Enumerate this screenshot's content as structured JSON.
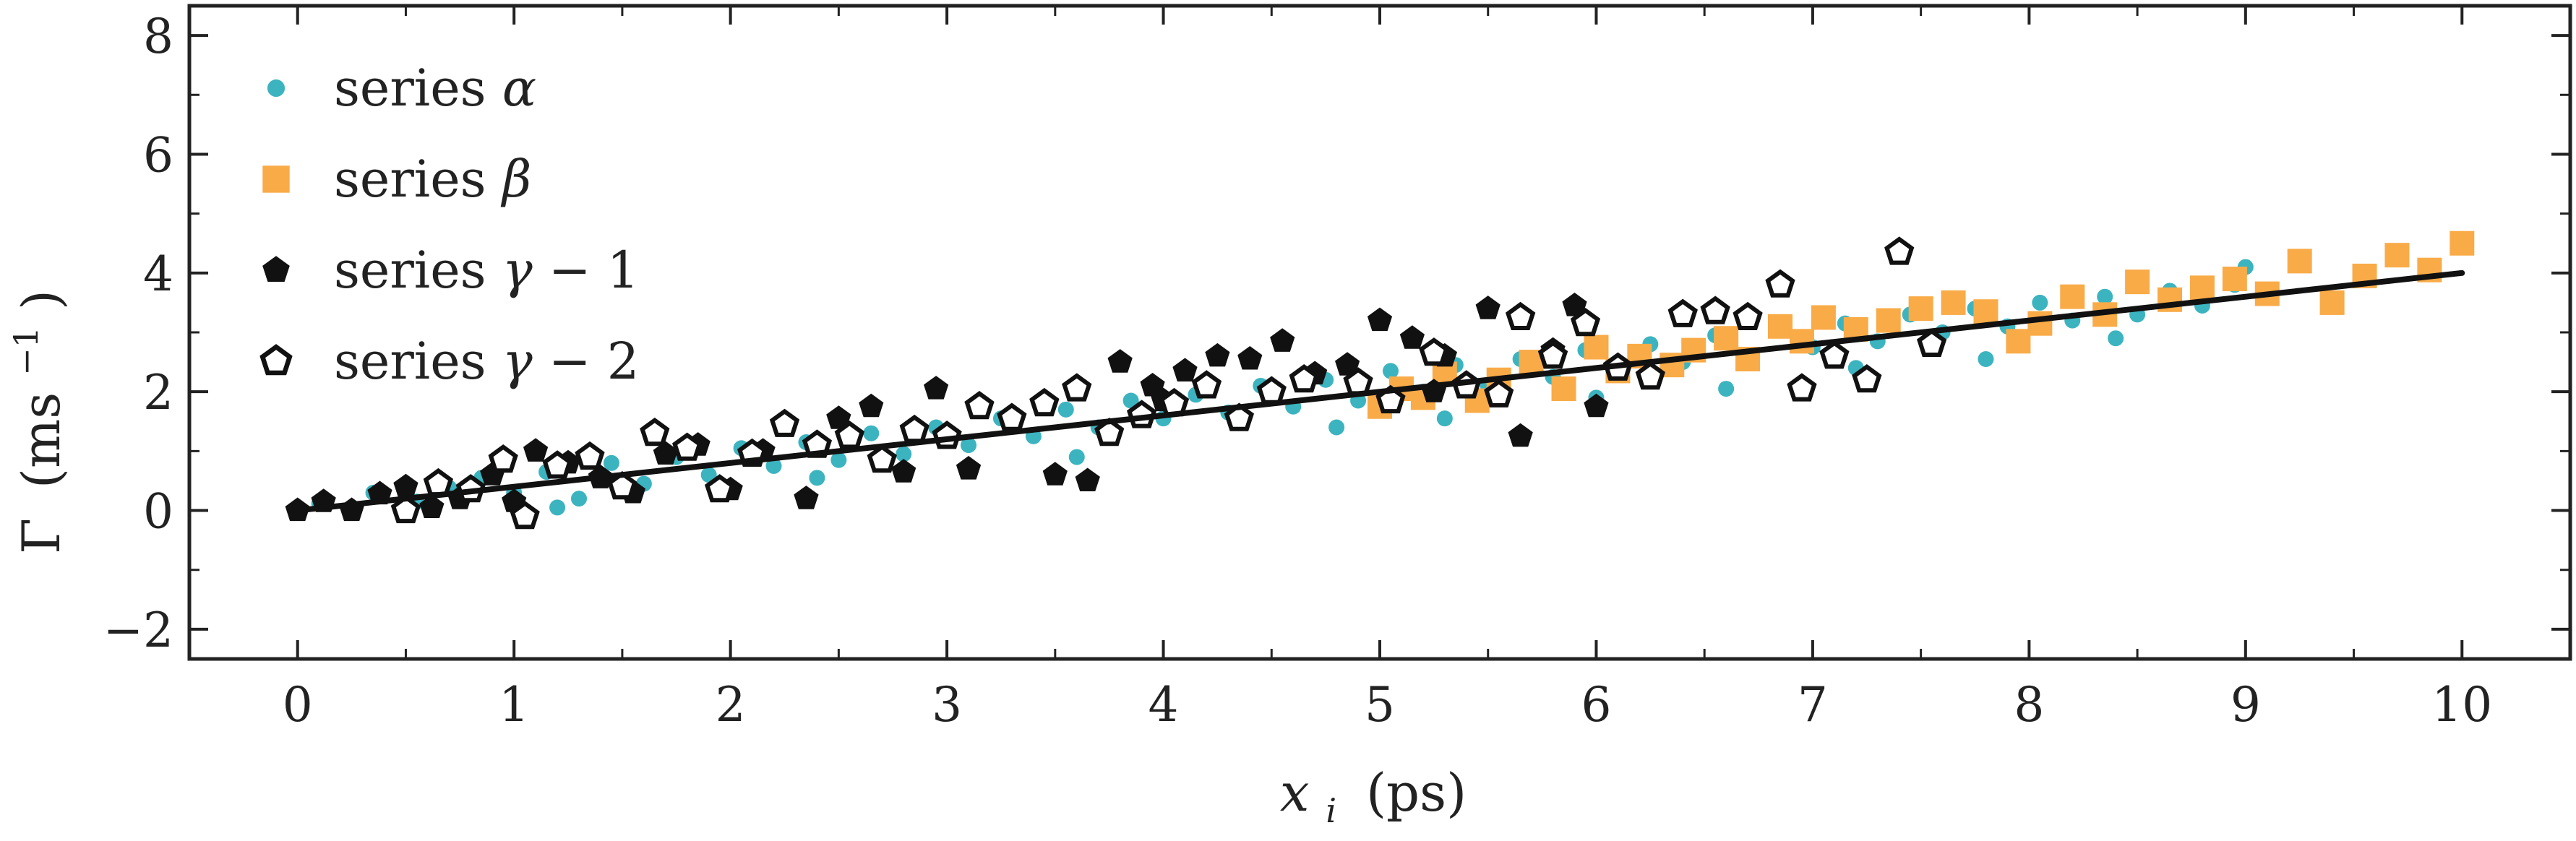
{
  "chart_data": {
    "type": "scatter",
    "xlabel": {
      "symbol": "x",
      "subscript": "i",
      "unit": "(ps)"
    },
    "ylabel": {
      "symbol": "Γ",
      "unit_open": "(ms",
      "unit_sup": "−1",
      "unit_close": ")"
    },
    "xlim": [
      -0.5,
      10.5
    ],
    "ylim": [
      -2.5,
      8.5
    ],
    "xticks": [
      0,
      1,
      2,
      3,
      4,
      5,
      6,
      7,
      8,
      9,
      10
    ],
    "xtick_labels": [
      "0",
      "1",
      "2",
      "3",
      "4",
      "5",
      "6",
      "7",
      "8",
      "9",
      "10"
    ],
    "yticks": [
      -2,
      0,
      2,
      4,
      6,
      8
    ],
    "ytick_labels": [
      "−2",
      "0",
      "2",
      "4",
      "6",
      "8"
    ],
    "grid": false,
    "legend": {
      "placement": "top-left"
    },
    "fit_line": {
      "color": "#111111",
      "points": [
        [
          0,
          0.0
        ],
        [
          10,
          4.0
        ]
      ]
    },
    "series": [
      {
        "name": "series α",
        "label_prefix": "series ",
        "label_symbol": "α",
        "label_suffix": "",
        "marker": "circle",
        "filled": true,
        "color": "#3cb4c0",
        "points": [
          [
            0.1,
            0.12
          ],
          [
            0.35,
            0.3
          ],
          [
            0.55,
            0.15
          ],
          [
            0.7,
            0.38
          ],
          [
            0.85,
            0.55
          ],
          [
            1.0,
            0.3
          ],
          [
            1.15,
            0.65
          ],
          [
            1.3,
            0.2
          ],
          [
            1.45,
            0.8
          ],
          [
            1.6,
            0.45
          ],
          [
            1.75,
            0.9
          ],
          [
            1.9,
            0.6
          ],
          [
            2.05,
            1.05
          ],
          [
            2.2,
            0.75
          ],
          [
            2.35,
            1.15
          ],
          [
            2.5,
            0.85
          ],
          [
            2.65,
            1.3
          ],
          [
            2.8,
            0.95
          ],
          [
            2.95,
            1.4
          ],
          [
            3.1,
            1.1
          ],
          [
            3.25,
            1.55
          ],
          [
            3.4,
            1.25
          ],
          [
            3.55,
            1.7
          ],
          [
            3.7,
            1.4
          ],
          [
            3.85,
            1.85
          ],
          [
            4.0,
            1.55
          ],
          [
            4.15,
            1.95
          ],
          [
            4.3,
            1.65
          ],
          [
            4.45,
            2.1
          ],
          [
            4.6,
            1.75
          ],
          [
            4.75,
            2.2
          ],
          [
            4.9,
            1.85
          ],
          [
            5.05,
            2.35
          ],
          [
            5.2,
            2.0
          ],
          [
            5.35,
            2.45
          ],
          [
            5.5,
            2.1
          ],
          [
            5.65,
            2.55
          ],
          [
            5.8,
            2.25
          ],
          [
            5.95,
            2.7
          ],
          [
            6.1,
            2.35
          ],
          [
            6.25,
            2.8
          ],
          [
            6.4,
            2.5
          ],
          [
            6.55,
            2.95
          ],
          [
            6.7,
            2.6
          ],
          [
            6.85,
            3.05
          ],
          [
            7.0,
            2.75
          ],
          [
            7.15,
            3.15
          ],
          [
            7.3,
            2.85
          ],
          [
            7.45,
            3.3
          ],
          [
            7.6,
            3.0
          ],
          [
            7.75,
            3.4
          ],
          [
            7.9,
            3.1
          ],
          [
            8.05,
            3.5
          ],
          [
            8.2,
            3.2
          ],
          [
            8.35,
            3.6
          ],
          [
            8.5,
            3.3
          ],
          [
            8.65,
            3.7
          ],
          [
            8.8,
            3.45
          ],
          [
            8.95,
            3.8
          ],
          [
            9.0,
            4.1
          ],
          [
            1.2,
            0.05
          ],
          [
            2.4,
            0.55
          ],
          [
            3.6,
            0.9
          ],
          [
            4.8,
            1.4
          ],
          [
            6.0,
            1.9
          ],
          [
            7.2,
            2.4
          ],
          [
            8.4,
            2.9
          ],
          [
            5.3,
            1.55
          ],
          [
            6.6,
            2.05
          ],
          [
            7.8,
            2.55
          ]
        ]
      },
      {
        "name": "series β",
        "label_prefix": "series ",
        "label_symbol": "β",
        "label_suffix": "",
        "marker": "square",
        "filled": true,
        "color": "#f9ab48",
        "points": [
          [
            5.0,
            1.75
          ],
          [
            5.1,
            2.05
          ],
          [
            5.2,
            1.9
          ],
          [
            5.3,
            2.3
          ],
          [
            5.45,
            1.85
          ],
          [
            5.55,
            2.2
          ],
          [
            5.7,
            2.5
          ],
          [
            5.85,
            2.05
          ],
          [
            6.0,
            2.75
          ],
          [
            6.1,
            2.35
          ],
          [
            6.2,
            2.6
          ],
          [
            6.35,
            2.45
          ],
          [
            6.45,
            2.7
          ],
          [
            6.6,
            2.9
          ],
          [
            6.7,
            2.55
          ],
          [
            6.85,
            3.1
          ],
          [
            6.95,
            2.85
          ],
          [
            7.05,
            3.25
          ],
          [
            7.2,
            3.05
          ],
          [
            7.35,
            3.2
          ],
          [
            7.5,
            3.4
          ],
          [
            7.65,
            3.5
          ],
          [
            7.8,
            3.35
          ],
          [
            7.95,
            2.85
          ],
          [
            8.05,
            3.15
          ],
          [
            8.2,
            3.6
          ],
          [
            8.35,
            3.3
          ],
          [
            8.5,
            3.85
          ],
          [
            8.65,
            3.55
          ],
          [
            8.8,
            3.75
          ],
          [
            8.95,
            3.9
          ],
          [
            9.1,
            3.65
          ],
          [
            9.25,
            4.2
          ],
          [
            9.4,
            3.5
          ],
          [
            9.55,
            3.95
          ],
          [
            9.7,
            4.3
          ],
          [
            9.85,
            4.05
          ],
          [
            10.0,
            4.5
          ]
        ]
      },
      {
        "name": "series γ − 1",
        "label_prefix": "series ",
        "label_symbol": "γ",
        "label_suffix": " − 1",
        "marker": "pentagon",
        "filled": true,
        "color": "#111111",
        "points": [
          [
            0.0,
            0.0
          ],
          [
            0.12,
            0.15
          ],
          [
            0.25,
            0.0
          ],
          [
            0.38,
            0.28
          ],
          [
            0.5,
            0.4
          ],
          [
            0.62,
            0.05
          ],
          [
            0.75,
            0.2
          ],
          [
            0.9,
            0.6
          ],
          [
            1.0,
            0.15
          ],
          [
            1.1,
            1.0
          ],
          [
            1.25,
            0.8
          ],
          [
            1.4,
            0.55
          ],
          [
            1.55,
            0.3
          ],
          [
            1.7,
            0.95
          ],
          [
            1.85,
            1.1
          ],
          [
            2.0,
            0.35
          ],
          [
            2.15,
            1.0
          ],
          [
            2.35,
            0.2
          ],
          [
            2.5,
            1.55
          ],
          [
            2.65,
            1.75
          ],
          [
            2.8,
            0.65
          ],
          [
            2.95,
            2.05
          ],
          [
            3.1,
            0.7
          ],
          [
            3.3,
            1.5
          ],
          [
            3.5,
            0.6
          ],
          [
            3.65,
            0.5
          ],
          [
            3.8,
            2.5
          ],
          [
            3.95,
            2.1
          ],
          [
            4.1,
            2.35
          ],
          [
            4.25,
            2.6
          ],
          [
            4.4,
            2.55
          ],
          [
            4.55,
            2.85
          ],
          [
            4.7,
            2.3
          ],
          [
            4.85,
            2.45
          ],
          [
            5.0,
            3.2
          ],
          [
            5.15,
            2.9
          ],
          [
            5.3,
            2.6
          ],
          [
            5.5,
            3.4
          ],
          [
            5.65,
            1.25
          ],
          [
            5.8,
            2.7
          ],
          [
            5.9,
            3.45
          ],
          [
            6.0,
            1.75
          ],
          [
            5.25,
            2.0
          ],
          [
            4.0,
            1.85
          ]
        ]
      },
      {
        "name": "series γ − 2",
        "label_prefix": "series ",
        "label_symbol": "γ",
        "label_suffix": " − 2",
        "marker": "pentagon",
        "filled": false,
        "color": "#111111",
        "points": [
          [
            0.5,
            0.0
          ],
          [
            0.65,
            0.45
          ],
          [
            0.8,
            0.35
          ],
          [
            0.95,
            0.85
          ],
          [
            1.05,
            -0.1
          ],
          [
            1.2,
            0.75
          ],
          [
            1.35,
            0.9
          ],
          [
            1.5,
            0.4
          ],
          [
            1.65,
            1.3
          ],
          [
            1.8,
            1.05
          ],
          [
            1.95,
            0.35
          ],
          [
            2.1,
            0.95
          ],
          [
            2.25,
            1.45
          ],
          [
            2.4,
            1.1
          ],
          [
            2.55,
            1.25
          ],
          [
            2.7,
            0.85
          ],
          [
            2.85,
            1.35
          ],
          [
            3.0,
            1.25
          ],
          [
            3.15,
            1.75
          ],
          [
            3.3,
            1.55
          ],
          [
            3.45,
            1.8
          ],
          [
            3.6,
            2.05
          ],
          [
            3.75,
            1.3
          ],
          [
            3.9,
            1.6
          ],
          [
            4.05,
            1.8
          ],
          [
            4.2,
            2.1
          ],
          [
            4.35,
            1.55
          ],
          [
            4.5,
            2.0
          ],
          [
            4.65,
            2.2
          ],
          [
            4.9,
            2.15
          ],
          [
            5.05,
            1.85
          ],
          [
            5.25,
            2.65
          ],
          [
            5.4,
            2.1
          ],
          [
            5.55,
            1.95
          ],
          [
            5.65,
            3.25
          ],
          [
            5.8,
            2.6
          ],
          [
            5.95,
            3.15
          ],
          [
            6.1,
            2.4
          ],
          [
            6.25,
            2.25
          ],
          [
            6.4,
            3.3
          ],
          [
            6.55,
            3.35
          ],
          [
            6.7,
            3.25
          ],
          [
            6.85,
            3.8
          ],
          [
            6.95,
            2.05
          ],
          [
            7.1,
            2.6
          ],
          [
            7.25,
            2.2
          ],
          [
            7.4,
            4.35
          ],
          [
            7.55,
            2.8
          ]
        ]
      }
    ]
  }
}
